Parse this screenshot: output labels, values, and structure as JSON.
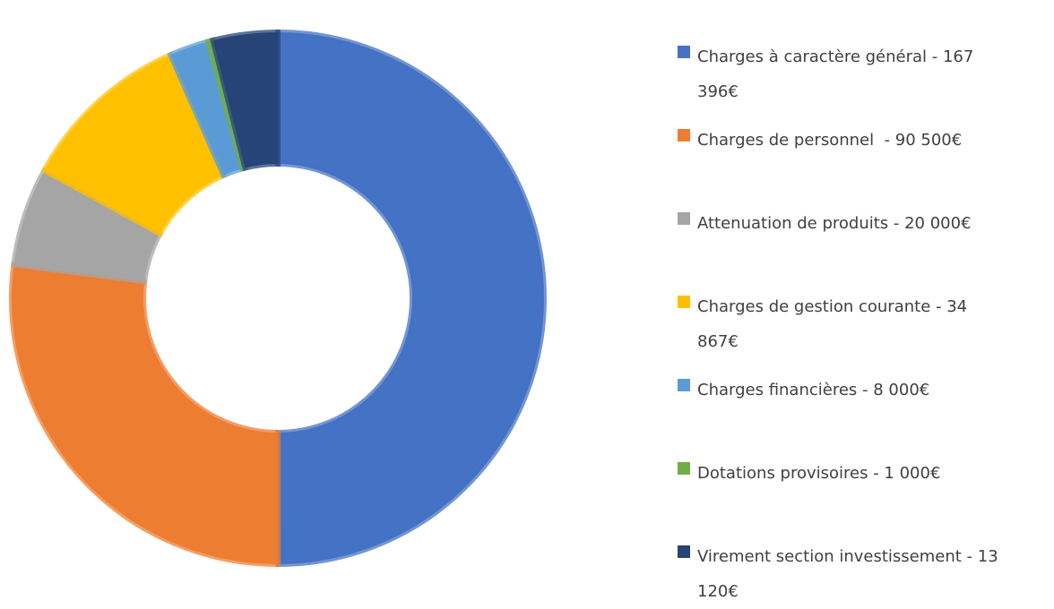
{
  "chart_data": {
    "type": "donut",
    "categories": [
      "Charges à caractère général - 167 396€",
      "Charges de personnel  - 90 500€",
      "Attenuation de produits - 20 000€",
      "Charges de gestion courante - 34 867€",
      "Charges financières - 8 000€",
      "Dotations provisoires - 1 000€",
      "Virement section investissement - 13 120€"
    ],
    "values": [
      167396,
      90500,
      20000,
      34867,
      8000,
      1000,
      13120
    ],
    "colors": [
      "#4472c4",
      "#ed7d31",
      "#a5a5a5",
      "#ffc000",
      "#5b9bd5",
      "#70ad47",
      "#264478"
    ],
    "legend": "right"
  }
}
